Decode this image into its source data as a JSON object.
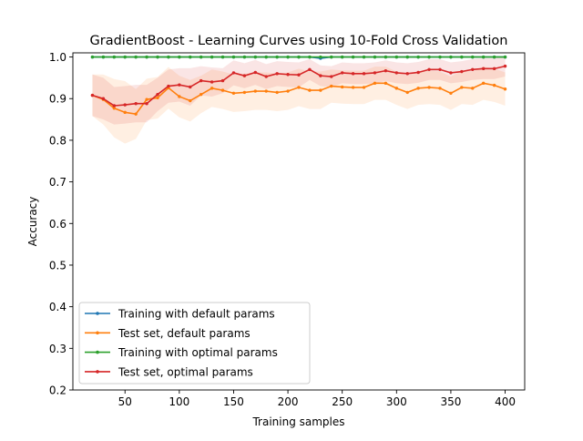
{
  "chart_data": {
    "type": "line",
    "title": "GradientBoost - Learning Curves using 10-Fold Cross Validation",
    "xlabel": "Training samples",
    "ylabel": "Accuracy",
    "xlim": [
      2,
      418
    ],
    "ylim": [
      0.2,
      1.01
    ],
    "xticks": [
      50,
      100,
      150,
      200,
      250,
      300,
      350,
      400
    ],
    "xtick_labels": [
      "50",
      "100",
      "150",
      "200",
      "250",
      "300",
      "350",
      "400"
    ],
    "yticks": [
      0.2,
      0.3,
      0.4,
      0.5,
      0.6,
      0.7,
      0.8,
      0.9,
      1.0
    ],
    "ytick_labels": [
      "0.2",
      "0.3",
      "0.4",
      "0.5",
      "0.6",
      "0.7",
      "0.8",
      "0.9",
      "1.0"
    ],
    "grid": false,
    "legend_position": "lower-left",
    "x": [
      20,
      30,
      40,
      50,
      60,
      70,
      80,
      90,
      100,
      110,
      120,
      130,
      140,
      150,
      160,
      170,
      180,
      190,
      200,
      210,
      220,
      230,
      240,
      250,
      260,
      270,
      280,
      290,
      300,
      310,
      320,
      330,
      340,
      350,
      360,
      370,
      380,
      390,
      400
    ],
    "series": [
      {
        "name": "Training with default params",
        "color": "#1f77b4",
        "values": [
          1.0,
          1.0,
          1.0,
          1.0,
          1.0,
          1.0,
          1.0,
          1.0,
          1.0,
          1.0,
          1.0,
          1.0,
          1.0,
          1.0,
          1.0,
          1.0,
          1.0,
          1.0,
          1.0,
          1.0,
          1.0,
          0.997,
          1.0,
          1.0,
          1.0,
          1.0,
          1.0,
          1.0,
          1.0,
          1.0,
          1.0,
          1.0,
          1.0,
          1.0,
          1.0,
          1.0,
          1.0,
          1.0,
          1.0
        ],
        "band": [
          0,
          0,
          0,
          0,
          0,
          0,
          0,
          0,
          0,
          0,
          0,
          0,
          0,
          0,
          0,
          0,
          0,
          0,
          0,
          0,
          0,
          0.003,
          0,
          0,
          0,
          0,
          0,
          0,
          0,
          0,
          0,
          0,
          0,
          0,
          0,
          0,
          0,
          0,
          0
        ]
      },
      {
        "name": "Test set, default params",
        "color": "#ff7f0e",
        "values": [
          0.908,
          0.898,
          0.877,
          0.867,
          0.863,
          0.898,
          0.902,
          0.926,
          0.905,
          0.895,
          0.91,
          0.925,
          0.92,
          0.913,
          0.915,
          0.918,
          0.918,
          0.915,
          0.918,
          0.927,
          0.92,
          0.92,
          0.93,
          0.928,
          0.927,
          0.927,
          0.937,
          0.937,
          0.925,
          0.915,
          0.925,
          0.927,
          0.925,
          0.913,
          0.927,
          0.925,
          0.937,
          0.932,
          0.923
        ],
        "band": [
          0.05,
          0.06,
          0.07,
          0.075,
          0.06,
          0.05,
          0.05,
          0.05,
          0.05,
          0.05,
          0.045,
          0.045,
          0.045,
          0.045,
          0.045,
          0.045,
          0.045,
          0.045,
          0.045,
          0.045,
          0.045,
          0.045,
          0.04,
          0.04,
          0.04,
          0.04,
          0.04,
          0.04,
          0.04,
          0.04,
          0.04,
          0.04,
          0.04,
          0.04,
          0.04,
          0.04,
          0.04,
          0.04,
          0.04
        ]
      },
      {
        "name": "Training with optimal params",
        "color": "#2ca02c",
        "values": [
          1.0,
          1.0,
          1.0,
          1.0,
          1.0,
          1.0,
          1.0,
          1.0,
          1.0,
          1.0,
          1.0,
          1.0,
          1.0,
          1.0,
          1.0,
          1.0,
          1.0,
          1.0,
          1.0,
          1.0,
          1.0,
          1.0,
          1.0,
          1.0,
          1.0,
          1.0,
          1.0,
          1.0,
          1.0,
          1.0,
          1.0,
          1.0,
          1.0,
          1.0,
          1.0,
          1.0,
          1.0,
          1.0,
          1.0
        ],
        "band": [
          0,
          0,
          0,
          0,
          0,
          0,
          0,
          0,
          0,
          0,
          0,
          0,
          0,
          0,
          0,
          0,
          0,
          0,
          0,
          0.003,
          0.003,
          0,
          0,
          0,
          0,
          0,
          0,
          0,
          0,
          0,
          0,
          0,
          0,
          0,
          0,
          0,
          0,
          0,
          0
        ]
      },
      {
        "name": "Test set, optimal params",
        "color": "#d62728",
        "values": [
          0.908,
          0.9,
          0.883,
          0.885,
          0.888,
          0.888,
          0.91,
          0.93,
          0.933,
          0.928,
          0.943,
          0.94,
          0.943,
          0.962,
          0.955,
          0.963,
          0.953,
          0.96,
          0.958,
          0.957,
          0.97,
          0.955,
          0.953,
          0.962,
          0.96,
          0.96,
          0.962,
          0.967,
          0.962,
          0.96,
          0.963,
          0.97,
          0.97,
          0.962,
          0.965,
          0.97,
          0.972,
          0.972,
          0.978
        ],
        "band": [
          0.05,
          0.05,
          0.045,
          0.045,
          0.045,
          0.045,
          0.04,
          0.04,
          0.04,
          0.045,
          0.035,
          0.035,
          0.03,
          0.03,
          0.03,
          0.03,
          0.03,
          0.03,
          0.03,
          0.03,
          0.025,
          0.025,
          0.025,
          0.025,
          0.025,
          0.025,
          0.025,
          0.025,
          0.025,
          0.025,
          0.025,
          0.025,
          0.025,
          0.025,
          0.025,
          0.025,
          0.025,
          0.025,
          0.025
        ]
      }
    ]
  }
}
